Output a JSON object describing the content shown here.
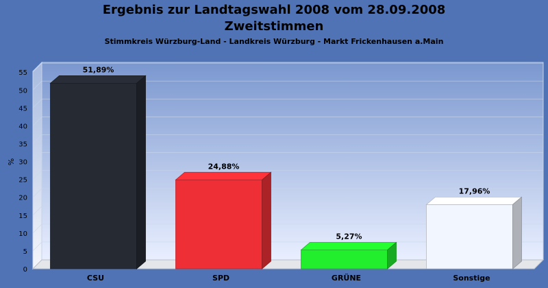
{
  "chart_data": {
    "type": "bar",
    "title": "Ergebnis zur Landtagswahl 2008 vom 28.09.2008",
    "subtitle": "Zweitstimmen",
    "subsubtitle": "Stimmkreis Würzburg-Land - Landkreis Würzburg - Markt Frickenhausen a.Main",
    "ylabel": "%",
    "ylim": [
      0,
      55
    ],
    "yticks": [
      0,
      5,
      10,
      15,
      20,
      25,
      30,
      35,
      40,
      45,
      50,
      55
    ],
    "grid": true,
    "categories": [
      "CSU",
      "SPD",
      "GRÜNE",
      "Sonstige"
    ],
    "values": [
      51.89,
      24.88,
      5.27,
      17.96
    ],
    "labels": [
      "51,89%",
      "24,88%",
      "5,27%",
      "17,96%"
    ],
    "colors": [
      "#262a33",
      "#ee2f36",
      "#22ee2e",
      "#f2f6ff"
    ],
    "background": "#4f73b5"
  }
}
